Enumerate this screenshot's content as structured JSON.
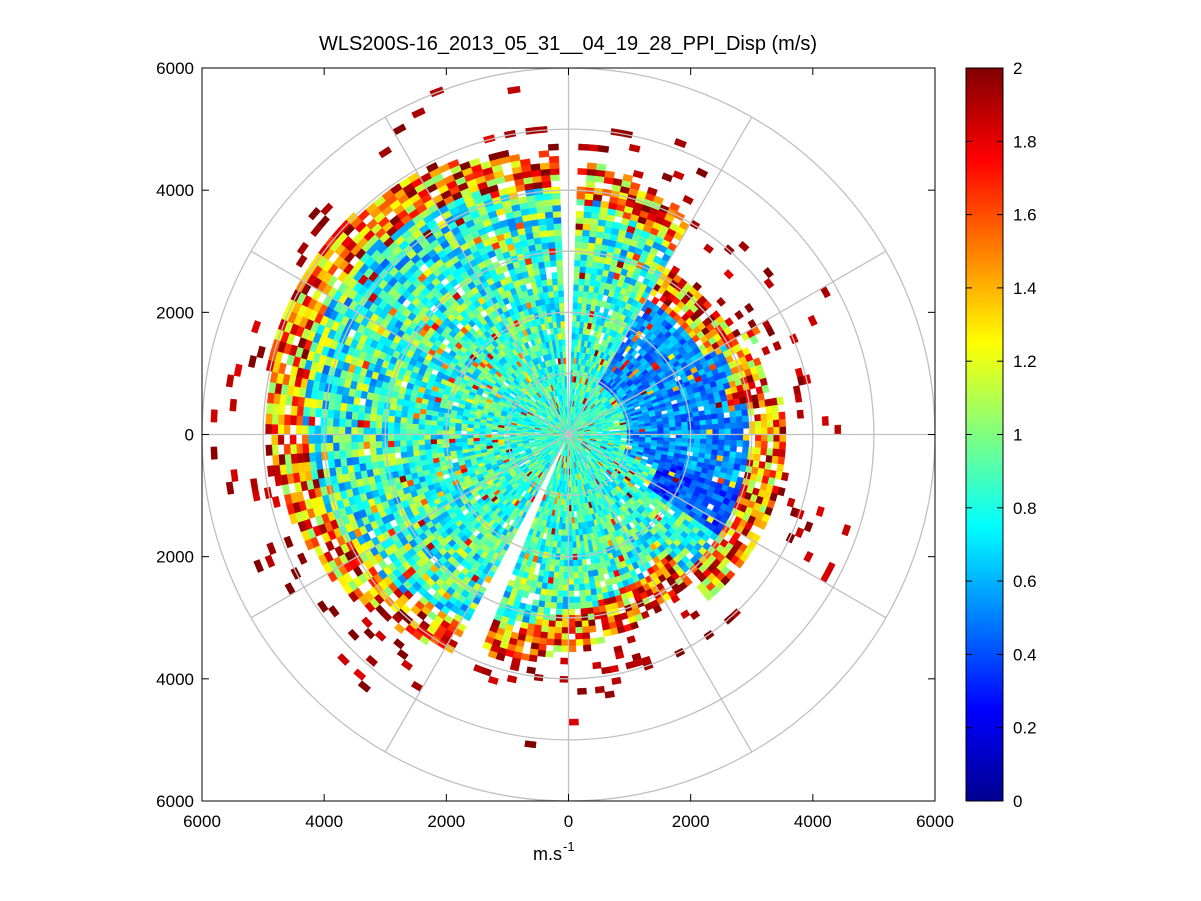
{
  "chart_data": {
    "type": "heatmap",
    "subtype": "polar-ppi",
    "title": "WLS200S-16_2013_05_31__04_19_28_PPI_Disp (m/s)",
    "xlabel": "m.s",
    "xlabel_superscript": "-1",
    "ylabel": "",
    "xlim": [
      -6000,
      6000
    ],
    "ylim": [
      -6000,
      6000
    ],
    "x_tick_labels": [
      "6000",
      "4000",
      "2000",
      "0",
      "2000",
      "4000",
      "6000"
    ],
    "y_tick_labels": [
      "6000",
      "4000",
      "2000",
      "0",
      "2000",
      "4000",
      "6000"
    ],
    "polar_grid": {
      "ring_radii_m": [
        1000,
        2000,
        3000,
        4000,
        5000,
        6000
      ],
      "spoke_angles_deg": [
        0,
        30,
        60,
        90,
        120,
        150,
        180,
        210,
        240,
        270,
        300,
        330
      ]
    },
    "colorbar": {
      "range": [
        0,
        2
      ],
      "tick_labels": [
        "0",
        "0.2",
        "0.4",
        "0.6",
        "0.8",
        "1",
        "1.2",
        "1.4",
        "1.6",
        "1.8",
        "2"
      ],
      "colormap": "jet",
      "colors": [
        "#00008f",
        "#0000ff",
        "#0080ff",
        "#00ffff",
        "#80ff80",
        "#ffff00",
        "#ff8000",
        "#ff0000",
        "#800000"
      ]
    },
    "field_description": {
      "value_units": "m/s",
      "max_range_m": 6000,
      "inner_region_typical_value": 0.9,
      "east_sector_low_values": [
        0.2,
        0.5
      ],
      "outer_edge_high_values": [
        1.6,
        2.0
      ],
      "gaps_azimuth_deg": [
        0,
        205
      ]
    }
  }
}
